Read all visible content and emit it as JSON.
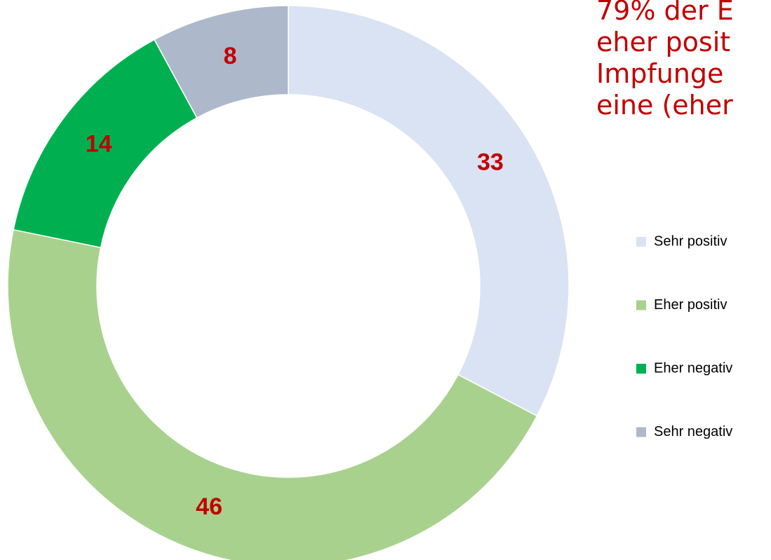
{
  "chart_data": {
    "type": "donut",
    "title_lines": [
      "79% der E",
      "eher posit",
      "Impfunge",
      "eine (eher"
    ],
    "categories": [
      "Sehr positiv",
      "Eher positiv",
      "Eher negativ",
      "Sehr negativ"
    ],
    "values": [
      33,
      46,
      14,
      8
    ],
    "colors": [
      "#dae3f3",
      "#a9d18e",
      "#00b050",
      "#adb9ca"
    ],
    "legend": "right"
  }
}
